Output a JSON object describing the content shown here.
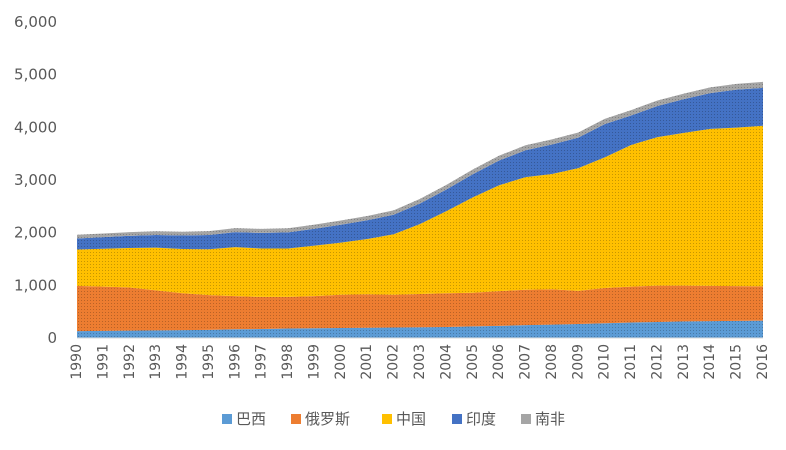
{
  "chart_data": {
    "type": "area",
    "stacked": true,
    "title": "",
    "xlabel": "",
    "ylabel": "",
    "ylim": [
      0,
      6000
    ],
    "yticks": [
      "0",
      "1,000",
      "2,000",
      "3,000",
      "4,000",
      "5,000",
      "6,000"
    ],
    "grid": false,
    "legend_position": "bottom",
    "x": [
      "1990",
      "1991",
      "1992",
      "1993",
      "1994",
      "1995",
      "1996",
      "1997",
      "1998",
      "1999",
      "2000",
      "2001",
      "2002",
      "2003",
      "2004",
      "2005",
      "2006",
      "2007",
      "2008",
      "2009",
      "2010",
      "2011",
      "2012",
      "2013",
      "2014",
      "2015",
      "2016"
    ],
    "series": [
      {
        "name": "巴西",
        "color": "#5B9BD5",
        "values": [
          130,
          135,
          140,
          145,
          150,
          155,
          165,
          170,
          180,
          185,
          190,
          195,
          200,
          205,
          210,
          220,
          230,
          245,
          255,
          265,
          280,
          295,
          305,
          315,
          320,
          325,
          330
        ]
      },
      {
        "name": "俄罗斯",
        "color": "#ED7D31",
        "values": [
          860,
          840,
          820,
          760,
          700,
          660,
          630,
          610,
          600,
          610,
          630,
          635,
          620,
          630,
          640,
          640,
          660,
          670,
          670,
          630,
          670,
          680,
          690,
          680,
          670,
          660,
          650
        ]
      },
      {
        "name": "中国",
        "color": "#FFC000",
        "values": [
          690,
          720,
          750,
          810,
          840,
          870,
          930,
          920,
          920,
          960,
          990,
          1050,
          1150,
          1330,
          1560,
          1810,
          2010,
          2140,
          2190,
          2330,
          2480,
          2690,
          2820,
          2900,
          2980,
          3010,
          3050
        ]
      },
      {
        "name": "印度",
        "color": "#4472C4",
        "values": [
          210,
          220,
          230,
          240,
          255,
          270,
          285,
          295,
          305,
          320,
          340,
          355,
          370,
          390,
          410,
          440,
          470,
          510,
          560,
          580,
          630,
          560,
          590,
          640,
          680,
          720,
          720
        ]
      },
      {
        "name": "南非",
        "color": "#A5A5A5",
        "values": [
          70,
          70,
          70,
          72,
          72,
          74,
          76,
          76,
          78,
          78,
          80,
          82,
          84,
          86,
          88,
          90,
          92,
          94,
          96,
          98,
          100,
          102,
          104,
          106,
          108,
          110,
          112
        ]
      }
    ]
  }
}
